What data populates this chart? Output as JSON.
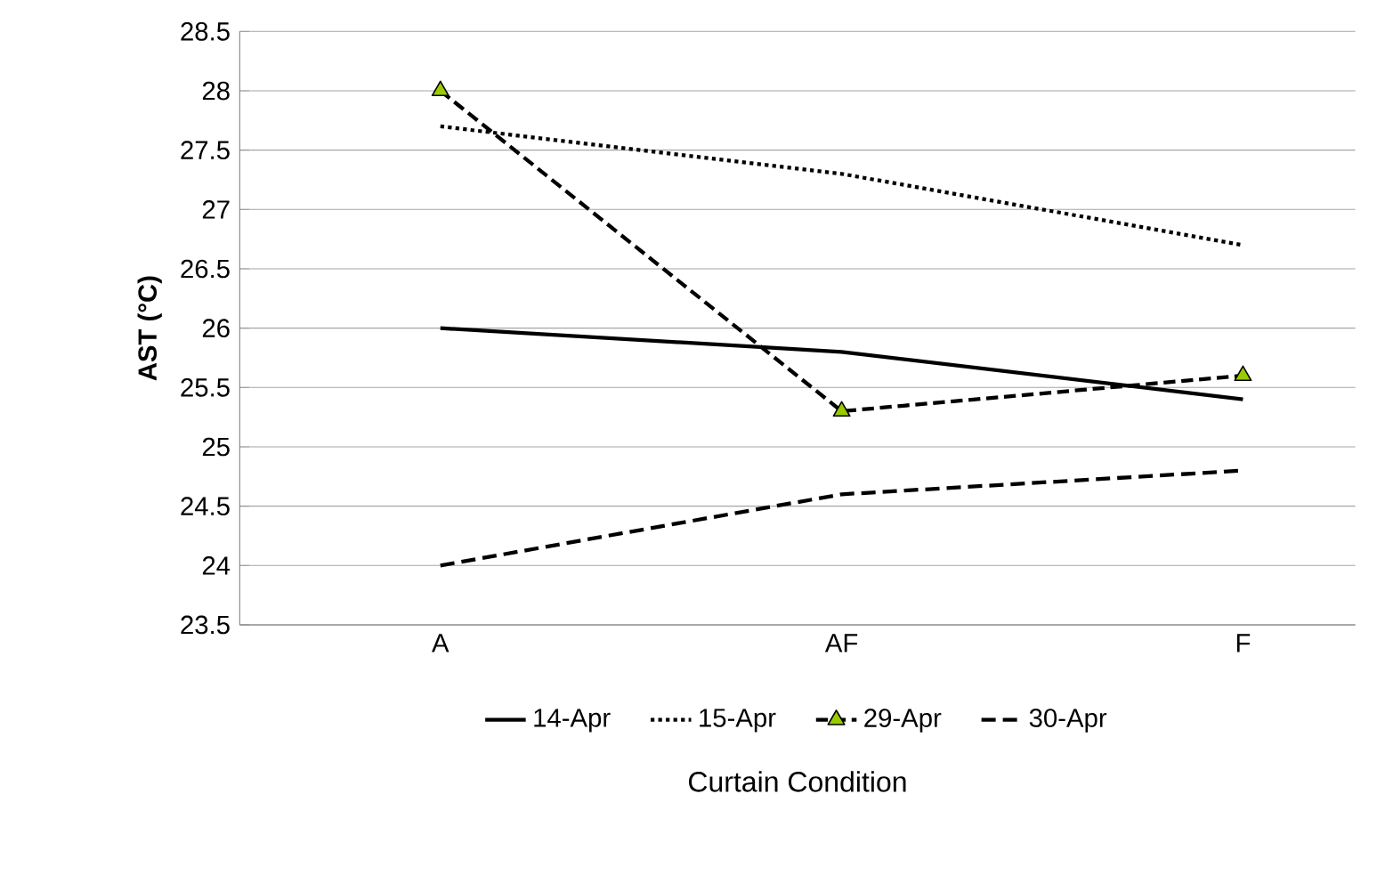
{
  "chart_data": {
    "type": "line",
    "xlabel": "Curtain Condition",
    "ylabel": "AST (°C)",
    "categories": [
      "A",
      "AF",
      "F"
    ],
    "ylim": [
      23.5,
      28.5
    ],
    "yticks": [
      23.5,
      24,
      24.5,
      25,
      25.5,
      26,
      26.5,
      27,
      27.5,
      28,
      28.5
    ],
    "grid": "y",
    "legend": "bottom",
    "series": [
      {
        "name": "14-Apr",
        "color": "#000000",
        "line_style": "solid",
        "marker": "none",
        "values": [
          26,
          25.8,
          25.4
        ]
      },
      {
        "name": "15-Apr",
        "color": "#000000",
        "line_style": "dotted",
        "marker": "none",
        "values": [
          27.7,
          27.3,
          26.7
        ]
      },
      {
        "name": "29-Apr",
        "color": "#000000",
        "line_style": "dashed",
        "marker": "triangle",
        "colors": [
          "#99cc00",
          "#99cc00",
          "#99cc00"
        ],
        "values": [
          28,
          25.3,
          25.6
        ]
      },
      {
        "name": "30-Apr",
        "color": "#000000",
        "line_style": "long dashed",
        "marker": "none",
        "values": [
          24,
          24.6,
          24.8
        ]
      }
    ]
  }
}
